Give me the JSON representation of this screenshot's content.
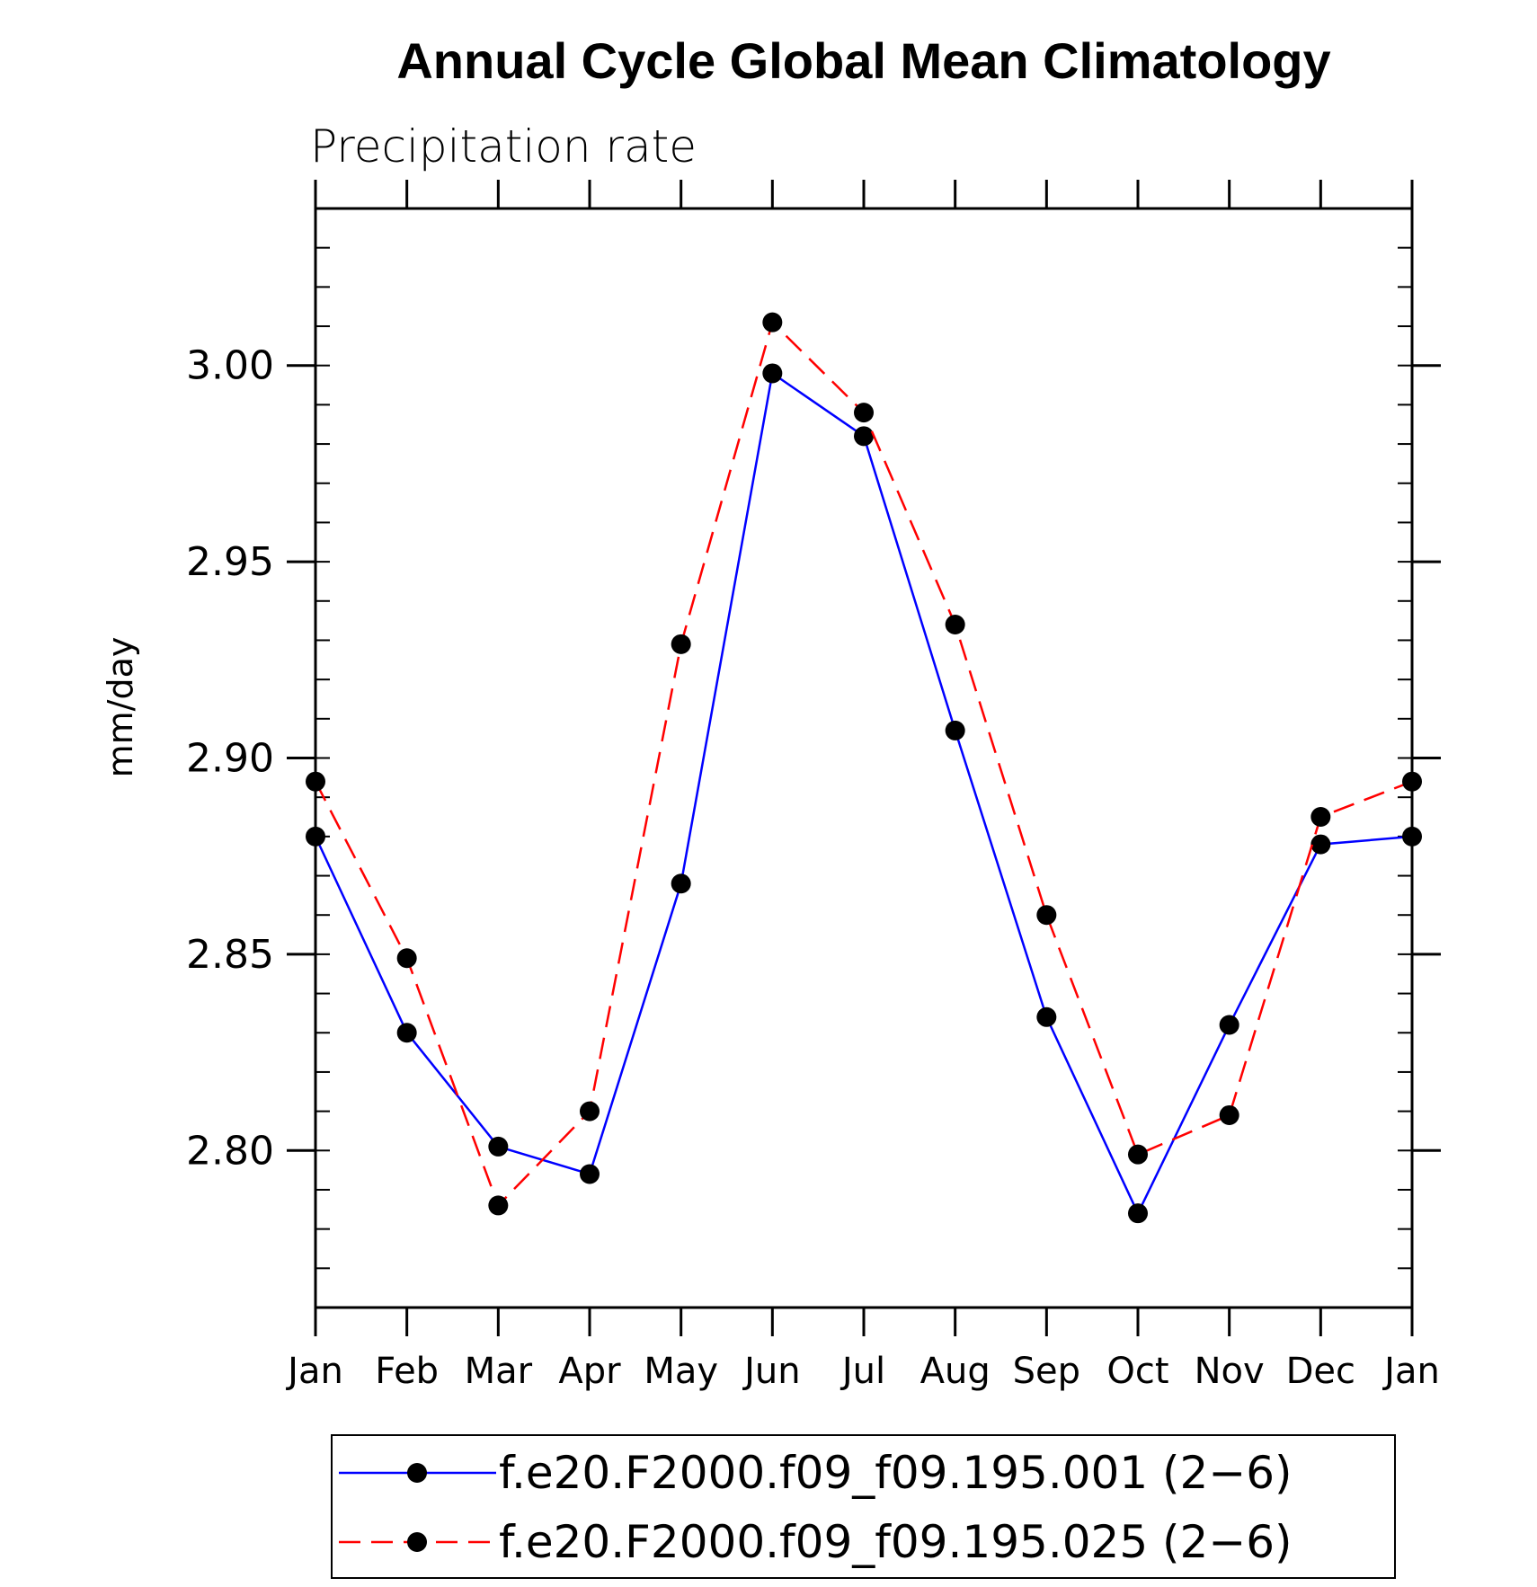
{
  "chart_data": {
    "type": "line",
    "title": "Annual Cycle Global Mean Climatology",
    "subtitle": "Precipitation rate",
    "xlabel": "",
    "ylabel": "mm/day",
    "categories": [
      "Jan",
      "Feb",
      "Mar",
      "Apr",
      "May",
      "Jun",
      "Jul",
      "Aug",
      "Sep",
      "Oct",
      "Nov",
      "Dec",
      "Jan"
    ],
    "ylim": [
      2.76,
      3.04
    ],
    "yticks": [
      "2.80",
      "2.85",
      "2.90",
      "2.95",
      "3.00"
    ],
    "grid": false,
    "legend_position": "bottom",
    "series": [
      {
        "name": "f.e20.F2000.f09_f09.195.001 (2−6)",
        "color": "#0000ff",
        "line_style": "solid",
        "marker": "filled-circle",
        "values": [
          2.88,
          2.83,
          2.801,
          2.794,
          2.868,
          2.998,
          2.982,
          2.907,
          2.834,
          2.784,
          2.832,
          2.878,
          2.88
        ]
      },
      {
        "name": "f.e20.F2000.f09_f09.195.025 (2−6)",
        "color": "#ff0000",
        "line_style": "dashed",
        "marker": "filled-circle",
        "values": [
          2.894,
          2.849,
          2.786,
          2.81,
          2.929,
          3.011,
          2.988,
          2.934,
          2.86,
          2.799,
          2.809,
          2.885,
          2.894
        ]
      }
    ]
  }
}
